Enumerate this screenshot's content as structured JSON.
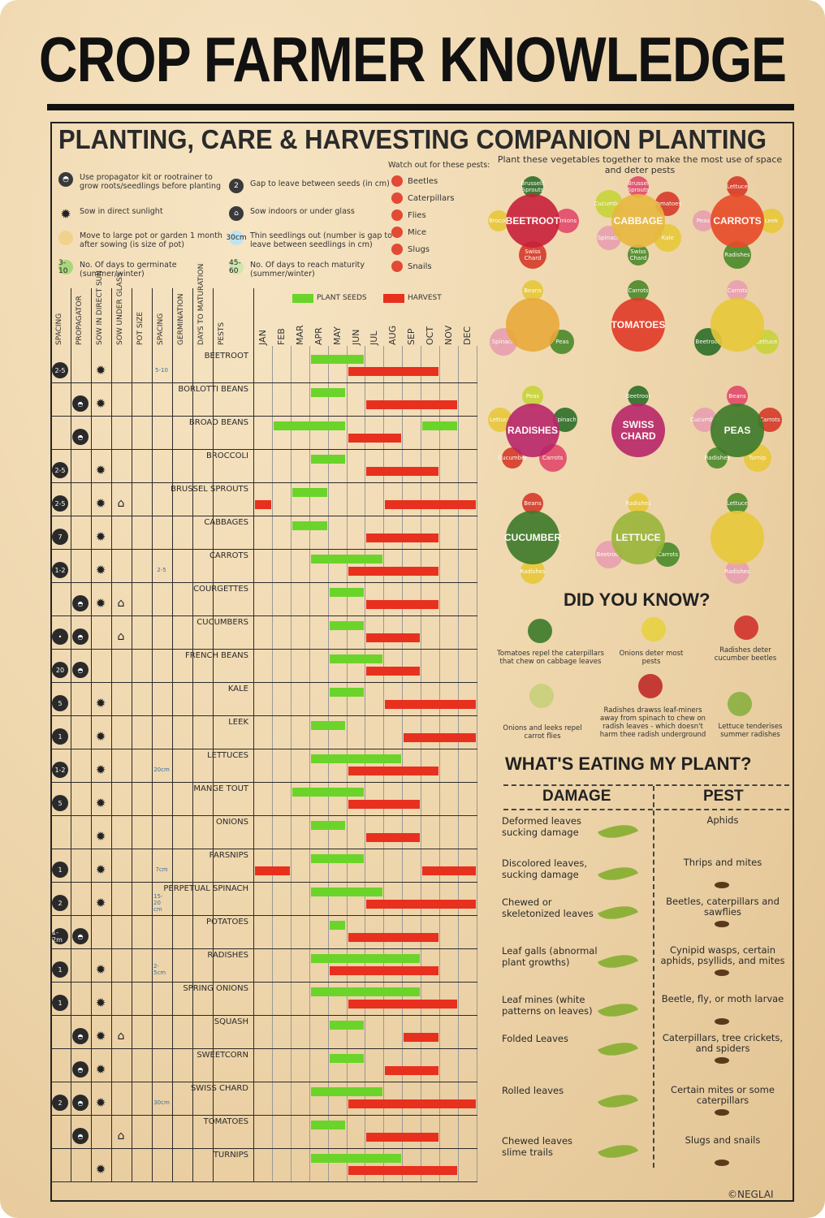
{
  "title": "CROP FARMER KNOWLEDGE",
  "section_title": "PLANTING, CARE & HARVESTING COMPANION PLANTING",
  "companion": {
    "subtitle": "Plant these vegetables together to make the most use of space and deter pests",
    "groups": [
      {
        "main": "BEETROOT",
        "partners": [
          "Brussels Sprouts",
          "Onions",
          "Swiss Chard",
          "Brocoli"
        ]
      },
      {
        "main": "CABBAGE",
        "partners": [
          "Brussel Sprouts",
          "Tomatoes",
          "Kale",
          "Swiss Chard",
          "Spinach",
          "Cucumber"
        ]
      },
      {
        "main": "CARROTS",
        "partners": [
          "Lettuce",
          "Leek",
          "Radishes",
          "Peas"
        ]
      },
      {
        "main": "",
        "partners": [
          "Beans",
          "Peas",
          "Spinach"
        ]
      },
      {
        "main": "TOMATOES",
        "partners": [
          "Carrots"
        ]
      },
      {
        "main": "",
        "partners": [
          "Carrots",
          "Lettuce",
          "Beetroot"
        ]
      },
      {
        "main": "RADISHES",
        "partners": [
          "Peas",
          "Spinach",
          "Carrots",
          "Cucumber",
          "Lettuce"
        ]
      },
      {
        "main": "SWISS CHARD",
        "partners": [
          "Beetroot"
        ]
      },
      {
        "main": "PEAS",
        "partners": [
          "Beans",
          "Carrots",
          "Turnip",
          "Radishes",
          "Cucumber"
        ]
      },
      {
        "main": "CUCUMBER",
        "partners": [
          "Beans",
          "Radishes"
        ]
      },
      {
        "main": "LETTUCE",
        "partners": [
          "Radishes",
          "Carrots",
          "Beetroot"
        ]
      },
      {
        "main": "",
        "partners": [
          "Lettuce",
          "Radishes"
        ]
      }
    ]
  },
  "legend": {
    "items": [
      {
        "icon": "propagator-icon",
        "text": "Use propagator kit or rootrainer to grow roots/seedlings before planting"
      },
      {
        "icon": "sun-icon",
        "text": "Sow in direct sunlight"
      },
      {
        "icon": "pot-icon",
        "text": "Move to large pot or garden 1 month after sowing (is size of pot)"
      },
      {
        "icon": "germinate-icon",
        "icon_text": "3-10",
        "text": "No. Of days to germinate (summer/winter)"
      },
      {
        "icon": "gap-icon",
        "icon_text": "2",
        "text": "Gap to leave between seeds (in cm)"
      },
      {
        "icon": "house-icon",
        "text": "Sow indoors or under glass"
      },
      {
        "icon": "thin-icon",
        "icon_text": "30cm",
        "text": "Thin seedlings out (number is gap to leave between seedlings in cm)"
      },
      {
        "icon": "maturity-icon",
        "icon_text": "45-60",
        "text": "No. Of days to reach maturity (summer/winter)"
      }
    ],
    "pests_title": "Watch out for these pests:",
    "pests": [
      "Beetles",
      "Caterpillars",
      "Flies",
      "Mice",
      "Slugs",
      "Snails"
    ]
  },
  "chart_key": {
    "plant": "PLANT SEEDS",
    "harvest": "HARVEST"
  },
  "columns": [
    "SPACING",
    "PROPAGATOR",
    "SOW IN DIRECT SUN",
    "SOW UNDER GLASS",
    "POT SIZE",
    "SPACING",
    "GERMINATION",
    "DAYS TO MATURATION",
    "PESTS"
  ],
  "months": [
    "JAN",
    "FEB",
    "MAR",
    "APR",
    "MAY",
    "JUN",
    "JUL",
    "AUG",
    "SEP",
    "OCT",
    "NOV",
    "DEC"
  ],
  "crops": [
    {
      "name": "BEETROOT",
      "spacing": "2-5",
      "sun": true,
      "thin": "5-10",
      "plant": [
        4,
        6
      ],
      "harvest": [
        6,
        10
      ]
    },
    {
      "name": "BORLOTTI BEANS",
      "propagator": true,
      "sun": true,
      "plant": [
        4,
        5
      ],
      "harvest": [
        7,
        11
      ]
    },
    {
      "name": "BROAD BEANS",
      "propagator": true,
      "plant": [
        2,
        5
      ],
      "plant2": [
        10,
        11
      ],
      "harvest": [
        6,
        8
      ]
    },
    {
      "name": "BROCCOLI",
      "spacing": "2-5",
      "sun": true,
      "plant": [
        4,
        5
      ],
      "harvest": [
        7,
        10
      ]
    },
    {
      "name": "BRUSSEL SPROUTS",
      "spacing": "2-5",
      "sun": true,
      "glass": true,
      "plant": [
        3,
        4
      ],
      "harvest": [
        1,
        1
      ],
      "harvest2": [
        8,
        12
      ]
    },
    {
      "name": "CABBAGES",
      "spacing": "7",
      "sun": true,
      "plant": [
        3,
        4
      ],
      "harvest": [
        7,
        10
      ]
    },
    {
      "name": "CARROTS",
      "spacing": "1-2",
      "sun": true,
      "thin": "2-5",
      "plant": [
        4,
        7
      ],
      "harvest": [
        6,
        10
      ]
    },
    {
      "name": "COURGETTES",
      "propagator": true,
      "sun": true,
      "glass": true,
      "plant": [
        5,
        6
      ],
      "harvest": [
        7,
        10
      ]
    },
    {
      "name": "CUCUMBERS",
      "spacing": "•",
      "propagator": true,
      "glass": true,
      "plant": [
        5,
        6
      ],
      "harvest": [
        7,
        9
      ]
    },
    {
      "name": "FRENCH BEANS",
      "spacing": "20",
      "propagator": true,
      "plant": [
        5,
        7
      ],
      "harvest": [
        7,
        9
      ]
    },
    {
      "name": "KALE",
      "spacing": "5",
      "sun": true,
      "plant": [
        5,
        6
      ],
      "harvest": [
        8,
        12
      ]
    },
    {
      "name": "LEEK",
      "spacing": "1",
      "sun": true,
      "plant": [
        4,
        5
      ],
      "harvest": [
        9,
        12
      ]
    },
    {
      "name": "LETTUCES",
      "spacing": "1-2",
      "sun": true,
      "thin": "20cm",
      "plant": [
        4,
        8
      ],
      "harvest": [
        6,
        10
      ]
    },
    {
      "name": "MANGE TOUT",
      "spacing": "5",
      "sun": true,
      "plant": [
        3,
        6
      ],
      "harvest": [
        6,
        9
      ]
    },
    {
      "name": "ONIONS",
      "sun": true,
      "plant": [
        4,
        5
      ],
      "harvest": [
        7,
        9
      ]
    },
    {
      "name": "PARSNIPS",
      "spacing": "1",
      "sun": true,
      "thin": "7cm",
      "plant": [
        4,
        6
      ],
      "harvest": [
        1,
        2
      ],
      "harvest2": [
        10,
        12
      ]
    },
    {
      "name": "PERPETUAL SPINACH",
      "spacing": "2",
      "sun": true,
      "thin": "15-20 cm",
      "plant": [
        4,
        7
      ],
      "harvest": [
        7,
        12
      ]
    },
    {
      "name": "POTATOES",
      "spacing": "1-2m",
      "propagator": true,
      "plant": [
        5,
        5
      ],
      "harvest": [
        6,
        10
      ]
    },
    {
      "name": "RADISHES",
      "spacing": "1",
      "sun": true,
      "thin": "2-5cm",
      "plant": [
        4,
        9
      ],
      "harvest": [
        5,
        10
      ]
    },
    {
      "name": "SPRING ONIONS",
      "spacing": "1",
      "sun": true,
      "plant": [
        4,
        9
      ],
      "harvest": [
        6,
        11
      ]
    },
    {
      "name": "SQUASH",
      "propagator": true,
      "sun": true,
      "glass": true,
      "plant": [
        5,
        6
      ],
      "harvest": [
        9,
        10
      ]
    },
    {
      "name": "SWEETCORN",
      "propagator": true,
      "sun": true,
      "plant": [
        5,
        6
      ],
      "harvest": [
        8,
        10
      ]
    },
    {
      "name": "SWISS CHARD",
      "spacing": "2",
      "propagator": true,
      "sun": true,
      "thin": "30cm",
      "plant": [
        4,
        7
      ],
      "harvest": [
        6,
        12
      ]
    },
    {
      "name": "TOMATOES",
      "propagator": true,
      "glass": true,
      "plant": [
        4,
        5
      ],
      "harvest": [
        7,
        10
      ]
    },
    {
      "name": "TURNIPS",
      "sun": true,
      "plant": [
        4,
        8
      ],
      "harvest": [
        6,
        11
      ]
    }
  ],
  "did_you_know": {
    "heading": "DID YOU KNOW?",
    "facts": [
      "Tomatoes repel the caterpillars that chew on cabbage leaves",
      "Onions deter most pests",
      "Radishes deter cucumber beetles",
      "Onions and leeks repel carrot flies",
      "Radishes drawss leaf-miners away from spinach to chew on radish leaves - which doesn't harm thee radish underground",
      "Lettuce tenderises summer radishes"
    ]
  },
  "whats_eating": {
    "heading": "WHAT'S EATING MY PLANT?",
    "damage_heading": "DAMAGE",
    "pest_heading": "PEST",
    "rows": [
      {
        "damage": "Deformed leaves sucking damage",
        "pest": "Aphids"
      },
      {
        "damage": "Discolored leaves, sucking damage",
        "pest": "Thrips and mites"
      },
      {
        "damage": "Chewed or skeletonized leaves",
        "pest": "Beetles, caterpillars and sawflies"
      },
      {
        "damage": "Leaf galls (abnormal plant growths)",
        "pest": "Cynipid wasps, certain aphids, psyllids, and mites"
      },
      {
        "damage": "Leaf mines (white patterns on leaves)",
        "pest": "Beetle, fly, or moth larvae"
      },
      {
        "damage": "Folded Leaves",
        "pest": "Caterpillars, tree crickets, and spiders"
      },
      {
        "damage": "Rolled leaves",
        "pest": "Certain mites or some caterpillars"
      },
      {
        "damage": "Chewed leaves slime trails",
        "pest": "Slugs and snails"
      }
    ]
  },
  "copyright": "©NEGLAI",
  "colors": {
    "plant": "#6bd42a",
    "harvest": "#e8301f",
    "ink": "#222222"
  }
}
